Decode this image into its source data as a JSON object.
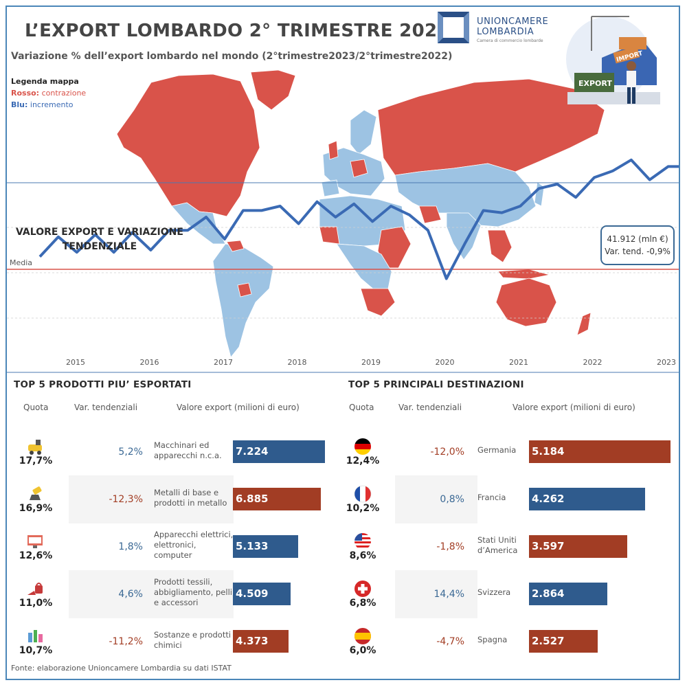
{
  "header": {
    "title": "L’EXPORT LOMBARDO 2° TRIMESTRE 2023",
    "subtitle": "Variazione % dell’export lombardo nel mondo (2°trimestre2023/2°trimestre2022)"
  },
  "legend": {
    "title": "Legenda mappa",
    "red_key": "Rosso:",
    "red_text": " contrazione",
    "blue_key": "Blu:",
    "blue_text": " incremento"
  },
  "logo": {
    "line1": "UNIONCAMERE",
    "line2": "LOMBARDIA",
    "tagline": "Camera di commercio lombarde"
  },
  "illustration": {
    "import_label": "IMPORT",
    "export_label": "EXPORT"
  },
  "colors": {
    "contraction": "#d9534a",
    "increase": "#9dc3e3",
    "line": "#3a6ab4",
    "bar_blue": "#2f5b8d",
    "bar_red": "#a23d24",
    "text_blue": "#3a6894",
    "text_red": "#a23d24"
  },
  "chart_data": [
    {
      "type": "line",
      "title": "VALORE EXPORT E VARIAZIONE TENDENZIALE",
      "mean_label": "Media",
      "x_ticks": [
        "2015",
        "2016",
        "2017",
        "2018",
        "2019",
        "2020",
        "2021",
        "2022",
        "2023"
      ],
      "values": [
        23.5,
        28.0,
        24.5,
        28.5,
        24.5,
        29.0,
        25.0,
        29.5,
        29.5,
        32.5,
        27.5,
        34.0,
        34.0,
        35.0,
        31.0,
        36.0,
        32.5,
        35.5,
        31.5,
        35.0,
        33.0,
        29.5,
        18.5,
        26.5,
        34.0,
        33.5,
        35.0,
        39.0,
        40.0,
        37.0,
        41.5,
        43.0,
        45.5,
        41.0,
        44.0,
        44.0,
        43.5
      ],
      "tooltip_value": "41.912 (mln €)",
      "tooltip_var": "Var. tend. -0,9%"
    },
    {
      "type": "bar",
      "title": "TOP 5 PRODOTTI PIU’ ESPORTATI",
      "columns": [
        "Quota",
        "Var. tendenziali",
        "Valore export (milioni di euro)"
      ],
      "rows": [
        {
          "icon": "machinery-icon",
          "quota": "17,7%",
          "var": "5,2%",
          "trend": "up",
          "name_lines": [
            "Macchinari ed",
            "apparecchi n.c.a."
          ],
          "value": 7224,
          "value_label": "7.224"
        },
        {
          "icon": "metal-casting-icon",
          "quota": "16,9%",
          "var": "-12,3%",
          "trend": "down",
          "name_lines": [
            "Metalli di base e",
            "prodotti in metallo"
          ],
          "value": 6885,
          "value_label": "6.885"
        },
        {
          "icon": "computer-monitor-icon",
          "quota": "12,6%",
          "var": "1,8%",
          "trend": "up",
          "name_lines": [
            "Apparecchi elettrici,",
            "elettronici,",
            "computer"
          ],
          "value": 5133,
          "value_label": "5.133"
        },
        {
          "icon": "fashion-shoe-bag-icon",
          "quota": "11,0%",
          "var": "4,6%",
          "trend": "up",
          "name_lines": [
            "Prodotti tessili,",
            "abbigliamento, pelli",
            "e accessori"
          ],
          "value": 4509,
          "value_label": "4.509"
        },
        {
          "icon": "chemicals-icon",
          "quota": "10,7%",
          "var": "-11,2%",
          "trend": "down",
          "name_lines": [
            "Sostanze e prodotti",
            "chimici"
          ],
          "value": 4373,
          "value_label": "4.373"
        }
      ]
    },
    {
      "type": "bar",
      "title": "TOP 5 PRINCIPALI DESTINAZIONI",
      "columns": [
        "Quota",
        "Var. tendenziali",
        "Valore export (milioni di euro)"
      ],
      "rows": [
        {
          "icon": "germany-flag-icon",
          "quota": "12,4%",
          "var": "-12,0%",
          "trend": "down",
          "name_lines": [
            "Germania"
          ],
          "value": 5184,
          "value_label": "5.184"
        },
        {
          "icon": "france-flag-icon",
          "quota": "10,2%",
          "var": "0,8%",
          "trend": "up",
          "name_lines": [
            "Francia"
          ],
          "value": 4262,
          "value_label": "4.262"
        },
        {
          "icon": "usa-flag-icon",
          "quota": "8,6%",
          "var": "-1,8%",
          "trend": "down",
          "name_lines": [
            "Stati Uniti",
            "d’America"
          ],
          "value": 3597,
          "value_label": "3.597"
        },
        {
          "icon": "switzerland-flag-icon",
          "quota": "6,8%",
          "var": "14,4%",
          "trend": "up",
          "name_lines": [
            "Svizzera"
          ],
          "value": 2864,
          "value_label": "2.864"
        },
        {
          "icon": "spain-flag-icon",
          "quota": "6,0%",
          "var": "-4,7%",
          "trend": "down",
          "name_lines": [
            "Spagna"
          ],
          "value": 2527,
          "value_label": "2.527"
        }
      ]
    }
  ],
  "footer": {
    "source": "Fonte: elaborazione Unioncamere Lombardia su dati ISTAT"
  }
}
